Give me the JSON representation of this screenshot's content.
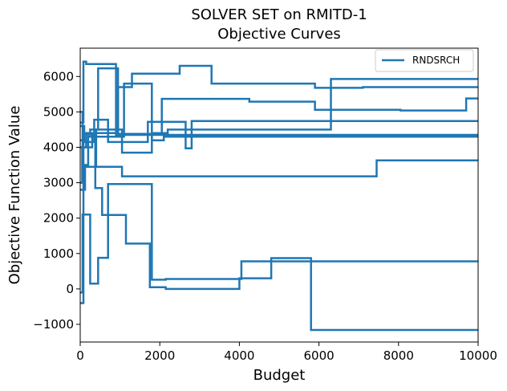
{
  "chart_data": {
    "type": "line",
    "title": [
      "SOLVER SET on RMITD-1",
      "Objective Curves"
    ],
    "xlabel": "Budget",
    "ylabel": "Objective Function Value",
    "xlim": [
      0,
      10000
    ],
    "ylim": [
      -1500,
      6800
    ],
    "x_ticks": [
      0,
      2000,
      4000,
      6000,
      8000,
      10000
    ],
    "x_tick_labels": [
      "0",
      "2000",
      "4000",
      "6000",
      "8000",
      "10000"
    ],
    "y_ticks": [
      -1000,
      0,
      1000,
      2000,
      3000,
      4000,
      5000,
      6000
    ],
    "y_tick_labels": [
      "−1000",
      "0",
      "1000",
      "2000",
      "3000",
      "4000",
      "5000",
      "6000"
    ],
    "grid": false,
    "legend_position": "top-right",
    "color": "#1f77b4",
    "series": [
      {
        "name": "RNDSRCH",
        "step_x": [
          0,
          80,
          150,
          900,
          10000
        ],
        "step_y": [
          4700,
          6420,
          6350,
          4350,
          4350
        ]
      },
      {
        "name": "",
        "step_x": [
          0,
          60,
          200,
          1100,
          1800,
          2100,
          3300,
          6300,
          10000
        ],
        "step_y": [
          5000,
          3500,
          4300,
          5800,
          4200,
          4300,
          4300,
          4300,
          4300
        ]
      },
      {
        "name": "",
        "step_x": [
          0,
          50,
          300,
          950,
          1300,
          2500,
          3300,
          5900,
          7100,
          10000
        ],
        "step_y": [
          3000,
          4000,
          4400,
          5700,
          6080,
          6300,
          5800,
          5680,
          5700,
          5700
        ]
      },
      {
        "name": "",
        "step_x": [
          0,
          100,
          250,
          450,
          950,
          2050,
          4250,
          5900,
          8050,
          9700,
          10000
        ],
        "step_y": [
          4200,
          4400,
          4500,
          6230,
          4380,
          5370,
          5290,
          5060,
          5040,
          5380,
          5380
        ]
      },
      {
        "name": "",
        "step_x": [
          0,
          120,
          400,
          1050,
          1800,
          2200,
          6300,
          10000
        ],
        "step_y": [
          2800,
          3450,
          4500,
          3850,
          4400,
          4500,
          5930,
          5930
        ]
      },
      {
        "name": "",
        "step_x": [
          0,
          80,
          350,
          700,
          1100,
          1700,
          2650,
          2800,
          6300,
          7800,
          10000
        ],
        "step_y": [
          -400,
          4150,
          4780,
          4150,
          4150,
          4720,
          3970,
          4740,
          4740,
          4740,
          4740
        ]
      },
      {
        "name": "",
        "step_x": [
          0,
          150,
          400,
          1050,
          7450,
          10000
        ],
        "step_y": [
          4000,
          4360,
          3450,
          3180,
          3630,
          3630
        ]
      },
      {
        "name": "",
        "step_x": [
          0,
          60,
          250,
          450,
          700,
          1800,
          2150,
          4050,
          10000
        ],
        "step_y": [
          -100,
          2100,
          150,
          880,
          2960,
          260,
          280,
          780,
          780
        ]
      },
      {
        "name": "",
        "step_x": [
          0,
          100,
          380,
          550,
          1150,
          1750,
          2150,
          4000,
          4800,
          5800,
          10000
        ],
        "step_y": [
          4600,
          4400,
          2850,
          2090,
          1280,
          50,
          0,
          300,
          870,
          -1160,
          -1160
        ]
      }
    ]
  }
}
